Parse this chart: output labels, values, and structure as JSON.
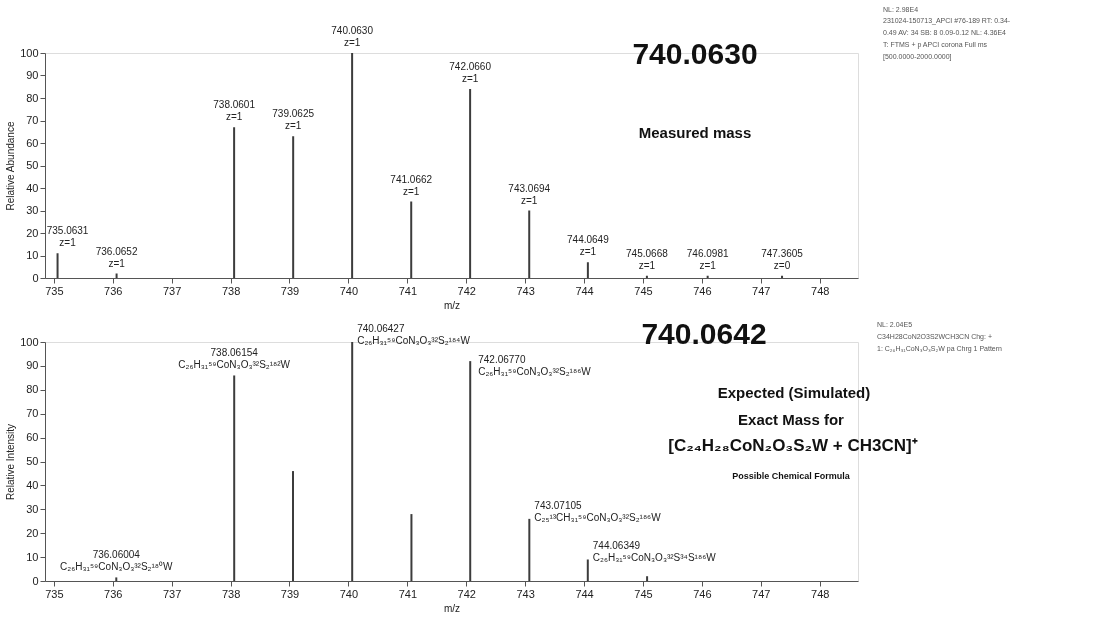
{
  "chart_data": [
    {
      "type": "bar",
      "xlabel": "m/z",
      "ylabel": "Relative Abundance",
      "x": [
        735.0631,
        736.0652,
        738.0601,
        739.0625,
        740.063,
        741.0662,
        742.066,
        743.0694,
        744.0649,
        745.0668,
        746.0981,
        747.3605
      ],
      "values": [
        11,
        2,
        67,
        63,
        100,
        34,
        84,
        30,
        7,
        1,
        1,
        1
      ],
      "color": "#3c3c3c",
      "xlim": [
        734.85,
        748.65
      ],
      "xticks": [
        735,
        736,
        737,
        738,
        739,
        740,
        741,
        742,
        743,
        744,
        745,
        746,
        747,
        748
      ],
      "ylim": [
        0,
        100
      ],
      "yticks": [
        0,
        10,
        20,
        30,
        40,
        50,
        60,
        70,
        80,
        90,
        100
      ],
      "grid": false,
      "annotations": [
        {
          "text": "735.0631\nz=1",
          "x": 735.0631,
          "y": 11
        },
        {
          "text": "736.0652\nz=1",
          "x": 736.0652,
          "y": 2
        },
        {
          "text": "738.0601\nz=1",
          "x": 738.0601,
          "y": 67
        },
        {
          "text": "739.0625\nz=1",
          "x": 739.0625,
          "y": 63
        },
        {
          "text": "740.0630\nz=1",
          "x": 740.063,
          "y": 100
        },
        {
          "text": "741.0662\nz=1",
          "x": 741.0662,
          "y": 34
        },
        {
          "text": "742.0660\nz=1",
          "x": 742.066,
          "y": 84
        },
        {
          "text": "743.0694\nz=1",
          "x": 743.0694,
          "y": 30
        },
        {
          "text": "744.0649\nz=1",
          "x": 744.0649,
          "y": 7
        },
        {
          "text": "745.0668\nz=1",
          "x": 745.0668,
          "y": 1
        },
        {
          "text": "746.0981\nz=1",
          "x": 746.0981,
          "y": 1
        },
        {
          "text": "747.3605\nz=0",
          "x": 747.3605,
          "y": 1
        },
        "740.0630",
        "Measured mass",
        "NL: 2.98E4",
        "231024-150713_APCI #76-189  RT: 0.34-",
        "0.49  AV: 34  SB: 8  0.09-0.12  NL: 4.36E4",
        "T: FTMS + p APCI corona Full ms",
        "[500.0000-2000.0000]"
      ]
    },
    {
      "type": "bar",
      "xlabel": "m/z",
      "ylabel": "Relative Intensity",
      "x": [
        736.06004,
        738.06154,
        739.06,
        740.06427,
        741.07,
        742.0677,
        743.07105,
        744.06349,
        745.07
      ],
      "values": [
        1.5,
        86,
        46,
        100,
        28,
        92,
        26,
        9,
        2
      ],
      "color": "#3c3c3c",
      "xlim": [
        734.85,
        748.65
      ],
      "xticks": [
        735,
        736,
        737,
        738,
        739,
        740,
        741,
        742,
        743,
        744,
        745,
        746,
        747,
        748
      ],
      "ylim": [
        0,
        100
      ],
      "yticks": [
        0,
        10,
        20,
        30,
        40,
        50,
        60,
        70,
        80,
        90,
        100
      ],
      "grid": false,
      "annotations": [
        {
          "text": "736.06004\nC₂₆H₃₁⁵⁹CoN₃O₃³²S₂¹⁸⁰W",
          "x": 736.06004,
          "y": 1.5
        },
        {
          "text": "738.06154\nC₂₆H₃₁⁵⁹CoN₃O₃³²S₂¹⁸²W",
          "x": 738.06154,
          "y": 86
        },
        {
          "text": "740.06427\nC₂₆H₃₁⁵⁹CoN₃O₃³²S₂¹⁸⁴W",
          "x": 740.06427,
          "y": 100
        },
        {
          "text": "742.06770\nC₂₆H₃₁⁵⁹CoN₃O₃³²S₂¹⁸⁶W",
          "x": 742.0677,
          "y": 92
        },
        {
          "text": "743.07105\nC₂₅¹³CH₃₁⁵⁹CoN₃O₃³²S₂¹⁸⁶W",
          "x": 743.07105,
          "y": 26
        },
        {
          "text": "744.06349\nC₂₆H₃₁⁵⁹CoN₃O₃³²S³⁴S¹⁸⁶W",
          "x": 744.06349,
          "y": 9
        },
        "740.0642",
        "Expected (Simulated)",
        "Exact Mass for",
        "[C₂₄H₂₈CoN₂O₃S₂W + CH3CN]⁺",
        "Possible Chemical Formula",
        "NL: 2.04E5",
        "C34H28CoN2O3S2WCH3CN Chg: +",
        "1: C₂₆H₃₁CoN₃O₃S₂W pa Chrg 1 Pattern"
      ]
    }
  ]
}
